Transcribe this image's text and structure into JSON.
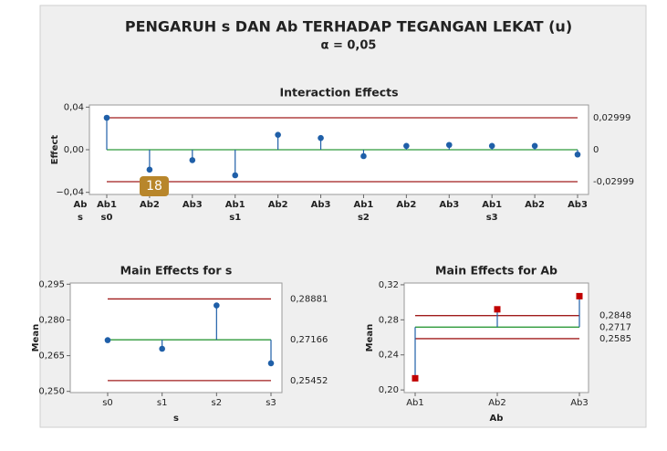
{
  "title": "PENGARUH s DAN Ab TERHADAP TEGANGAN LEKAT (u)",
  "subtitle": "α = 0,05",
  "annotation": "18",
  "chart_data": [
    {
      "type": "anom",
      "title": "Interaction Effects",
      "ylabel": "Effect",
      "category_axis_labels": [
        "Ab",
        "s"
      ],
      "categories": [
        "Ab1",
        "Ab2",
        "Ab3",
        "Ab1",
        "Ab2",
        "Ab3",
        "Ab1",
        "Ab2",
        "Ab3",
        "Ab1",
        "Ab2",
        "Ab3"
      ],
      "group_labels": [
        "s0",
        null,
        null,
        "s1",
        null,
        null,
        "s2",
        null,
        null,
        "s3",
        null,
        null
      ],
      "values": [
        0.03,
        -0.0187,
        -0.0098,
        -0.024,
        0.014,
        0.011,
        -0.006,
        0.0036,
        0.0045,
        0.0036,
        0.0036,
        -0.0045
      ],
      "ylim": [
        -0.042,
        0.042
      ],
      "yticks": [
        {
          "value": 0.04,
          "label": "0,04"
        },
        {
          "value": 0,
          "label": "0,00"
        },
        {
          "value": -0.04,
          "label": "−0,04"
        }
      ],
      "reference_lines": [
        {
          "value": 0.02999,
          "label": "0,02999",
          "role": "limit"
        },
        {
          "value": 0,
          "label": "0",
          "role": "center"
        },
        {
          "value": -0.02999,
          "label": "-0,02999",
          "role": "limit"
        }
      ],
      "marker": "circle",
      "color": "#1f5fa8",
      "limit_color": "#a01c1c",
      "center_color": "#2e9a3a"
    },
    {
      "type": "anom",
      "title": "Main Effects for s",
      "ylabel": "Mean",
      "xlabel": "s",
      "categories": [
        "s0",
        "s1",
        "s2",
        "s3"
      ],
      "values": [
        0.2715,
        0.2679,
        0.2861,
        0.2618
      ],
      "ylim": [
        0.2495,
        0.2955
      ],
      "yticks": [
        {
          "value": 0.25,
          "label": "0,250"
        },
        {
          "value": 0.265,
          "label": "0,265"
        },
        {
          "value": 0.28,
          "label": "0,280"
        },
        {
          "value": 0.295,
          "label": "0,295"
        }
      ],
      "reference_lines": [
        {
          "value": 0.28881,
          "label": "0,28881",
          "role": "limit"
        },
        {
          "value": 0.27166,
          "label": "0,27166",
          "role": "center"
        },
        {
          "value": 0.25452,
          "label": "0,25452",
          "role": "limit"
        }
      ],
      "marker": "circle",
      "color": "#1f5fa8",
      "limit_color": "#a01c1c",
      "center_color": "#2e9a3a"
    },
    {
      "type": "anom",
      "title": "Main Effects for Ab",
      "ylabel": "Mean",
      "xlabel": "Ab",
      "categories": [
        "Ab1",
        "Ab2",
        "Ab3"
      ],
      "values": [
        0.2133,
        0.292,
        0.307
      ],
      "ylim": [
        0.197,
        0.322
      ],
      "yticks": [
        {
          "value": 0.2,
          "label": "0,20"
        },
        {
          "value": 0.24,
          "label": "0,24"
        },
        {
          "value": 0.28,
          "label": "0,28"
        },
        {
          "value": 0.32,
          "label": "0,32"
        }
      ],
      "reference_lines": [
        {
          "value": 0.2848,
          "label": "0,2848",
          "role": "limit"
        },
        {
          "value": 0.2717,
          "label": "0,2717",
          "role": "center"
        },
        {
          "value": 0.2585,
          "label": "0,2585",
          "role": "limit"
        }
      ],
      "marker": "square",
      "color": "#c00000",
      "limit_color": "#a01c1c",
      "center_color": "#2e9a3a"
    }
  ]
}
